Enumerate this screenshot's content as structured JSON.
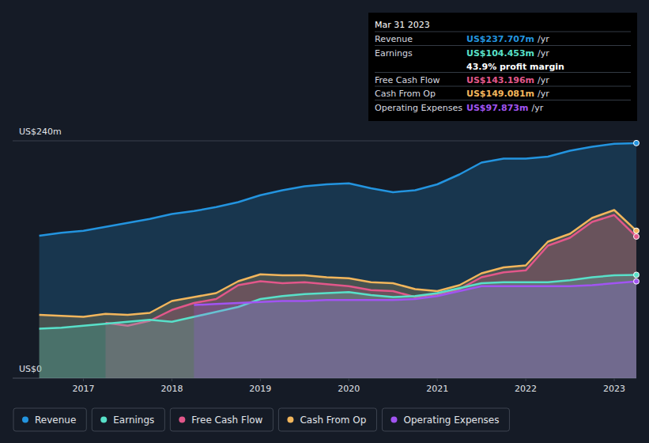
{
  "chart_data": {
    "type": "area",
    "x": [
      2016.5,
      2016.75,
      2017,
      2017.25,
      2017.5,
      2017.75,
      2018,
      2018.25,
      2018.5,
      2018.75,
      2019,
      2019.25,
      2019.5,
      2019.75,
      2020,
      2020.25,
      2020.5,
      2020.75,
      2021,
      2021.25,
      2021.5,
      2021.75,
      2022,
      2022.25,
      2022.5,
      2022.75,
      2023,
      2023.25
    ],
    "xlim": [
      2016.2,
      2023.25
    ],
    "xticks": [
      2017,
      2018,
      2019,
      2020,
      2021,
      2022,
      2023
    ],
    "ylim": [
      0,
      240
    ],
    "yticks": [
      {
        "value": 0,
        "label": "US$0"
      },
      {
        "value": 240,
        "label": "US$240m"
      }
    ],
    "grid": true,
    "legend": "bottom",
    "series": [
      {
        "name": "Revenue",
        "color": "#2394df",
        "values": [
          144,
          147,
          149,
          153,
          157,
          161,
          166,
          169,
          173,
          178,
          185,
          190,
          194,
          196,
          197,
          192,
          188,
          190,
          196,
          206,
          218,
          222,
          222,
          224,
          230,
          234,
          237,
          237.707
        ]
      },
      {
        "name": "Earnings",
        "color": "#58e0c9",
        "values": [
          50,
          51,
          53,
          55,
          57,
          59,
          57,
          62,
          67,
          72,
          80,
          83,
          85,
          86,
          87,
          84,
          82,
          83,
          86,
          91,
          96,
          97,
          97,
          97,
          99,
          102,
          104,
          104.453
        ]
      },
      {
        "name": "Free Cash Flow",
        "color": "#e2578a",
        "values": [
          null,
          null,
          null,
          56,
          53,
          58,
          69,
          76,
          80,
          94,
          98,
          96,
          97,
          95,
          93,
          89,
          88,
          82,
          85,
          90,
          102,
          107,
          109,
          134,
          142,
          158,
          165,
          143.196
        ]
      },
      {
        "name": "Cash From Op",
        "color": "#f2b65c",
        "values": [
          64,
          63,
          62,
          65,
          64,
          66,
          78,
          82,
          86,
          98,
          105,
          104,
          104,
          102,
          101,
          97,
          96,
          90,
          88,
          94,
          106,
          112,
          114,
          138,
          146,
          162,
          170,
          149.081
        ]
      },
      {
        "name": "Operating Expenses",
        "color": "#a154f2",
        "values": [
          null,
          null,
          null,
          null,
          null,
          null,
          null,
          74,
          75,
          76,
          77,
          78,
          78,
          79,
          79,
          79,
          79,
          80,
          83,
          88,
          93,
          93,
          93,
          93,
          93,
          94,
          96,
          97.873
        ]
      }
    ],
    "tooltip": {
      "title": "Mar 31 2023",
      "rows": [
        {
          "label": "Revenue",
          "value": "US$237.707m",
          "unit": "/yr"
        },
        {
          "label": "Earnings",
          "value": "US$104.453m",
          "unit": "/yr"
        },
        {
          "label": "Free Cash Flow",
          "value": "US$143.196m",
          "unit": "/yr"
        },
        {
          "label": "Cash From Op",
          "value": "US$149.081m",
          "unit": "/yr"
        },
        {
          "label": "Operating Expenses",
          "value": "US$97.873m",
          "unit": "/yr"
        }
      ],
      "profit_margin": "43.9% profit margin"
    }
  }
}
